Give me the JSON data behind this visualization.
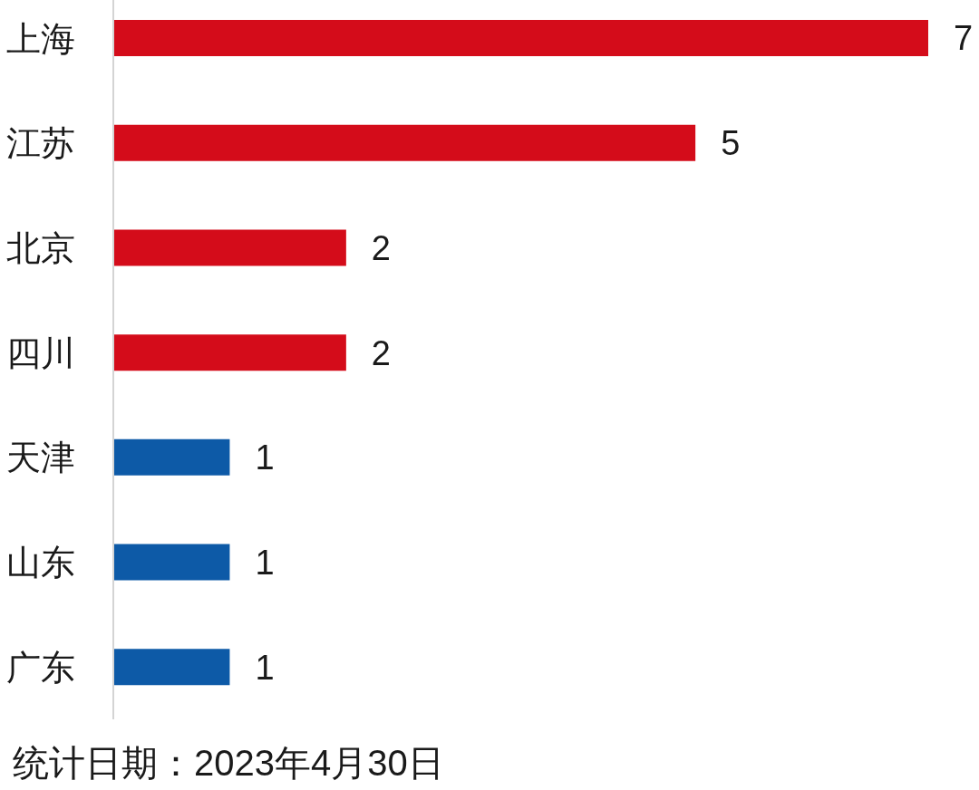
{
  "chart_data": {
    "type": "bar",
    "orientation": "horizontal",
    "categories": [
      "上海",
      "江苏",
      "北京",
      "四川",
      "天津",
      "山东",
      "广东"
    ],
    "values": [
      7,
      5,
      2,
      2,
      1,
      1,
      1
    ],
    "colors": [
      "#d40c1a",
      "#d40c1a",
      "#d40c1a",
      "#d40c1a",
      "#0d5aa7",
      "#0d5aa7",
      "#0d5aa7"
    ],
    "data_labels": true,
    "annotations": [
      "统计日期：2023年4月30日"
    ]
  }
}
